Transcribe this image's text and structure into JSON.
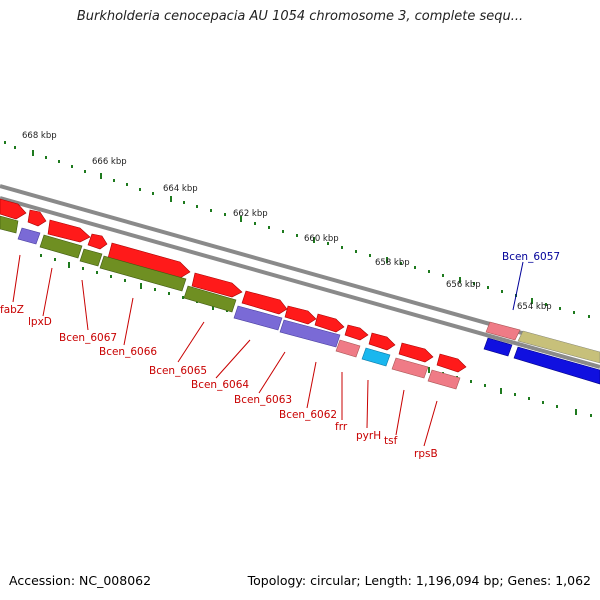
{
  "title": "Burkholderia cenocepacia AU 1054 chromosome 3, complete sequ...",
  "footer": {
    "accession": "Accession: NC_008062",
    "summary": "Topology: circular; Length: 1,196,094 bp; Genes: 1,062"
  },
  "colors": {
    "backbone": "#8a8a8a",
    "tick": "#1e7a1e",
    "gene_red": "#ff1a1a",
    "gene_pink": "#ef7b86",
    "gene_olive": "#6f8f22",
    "gene_purple": "#7a6ad6",
    "gene_cyan": "#1ab7ee",
    "gene_blue": "#1010e0",
    "gene_khaki": "#c7c07a",
    "label_red": "#c80000",
    "label_blue": "#000099"
  },
  "scale_labels": [
    "668 kbp",
    "666 kbp",
    "664 kbp",
    "662 kbp",
    "660 kbp",
    "658 kbp",
    "656 kbp",
    "654 kbp"
  ],
  "gene_labels": [
    "fabZ",
    "lpxD",
    "Bcen_6067",
    "Bcen_6066",
    "Bcen_6065",
    "Bcen_6064",
    "Bcen_6063",
    "Bcen_6062",
    "frr",
    "pyrH",
    "tsf",
    "rpsB"
  ],
  "highlighted_gene": "Bcen_6057"
}
